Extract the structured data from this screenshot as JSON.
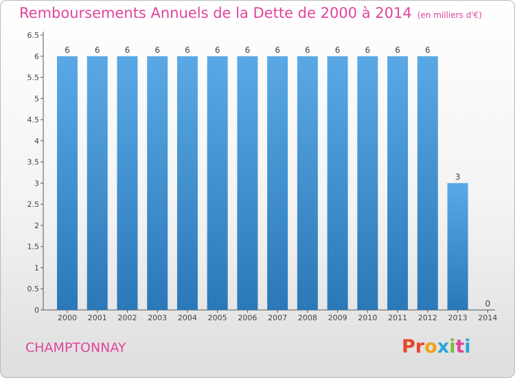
{
  "chart_data": {
    "type": "bar",
    "title": "Remboursements Annuels de la Dette de 2000 à 2014",
    "unit_note": "(en milliers d'€)",
    "categories": [
      "2000",
      "2001",
      "2002",
      "2003",
      "2004",
      "2005",
      "2006",
      "2007",
      "2008",
      "2009",
      "2010",
      "2011",
      "2012",
      "2013",
      "2014"
    ],
    "values": [
      6,
      6,
      6,
      6,
      6,
      6,
      6,
      6,
      6,
      6,
      6,
      6,
      6,
      3,
      0
    ],
    "ylim": [
      0,
      6.5
    ],
    "yticks": [
      "0",
      "0.5",
      "1",
      "1.5",
      "2",
      "2.5",
      "3",
      "3.5",
      "4",
      "4.5",
      "5",
      "5.5",
      "6",
      "6.5"
    ],
    "bar_color_top": "#5aa9e6",
    "bar_color_bottom": "#2a78b8",
    "grid": false
  },
  "commune": "CHAMPTONNAY",
  "logo": {
    "text": "Proxiti",
    "colors": [
      "#e8452c",
      "#e8452c",
      "#f3a21b",
      "#2ba5d9",
      "#7dbb2f",
      "#e0459a",
      "#2ba5d9"
    ]
  },
  "title_color": "#e0459a"
}
